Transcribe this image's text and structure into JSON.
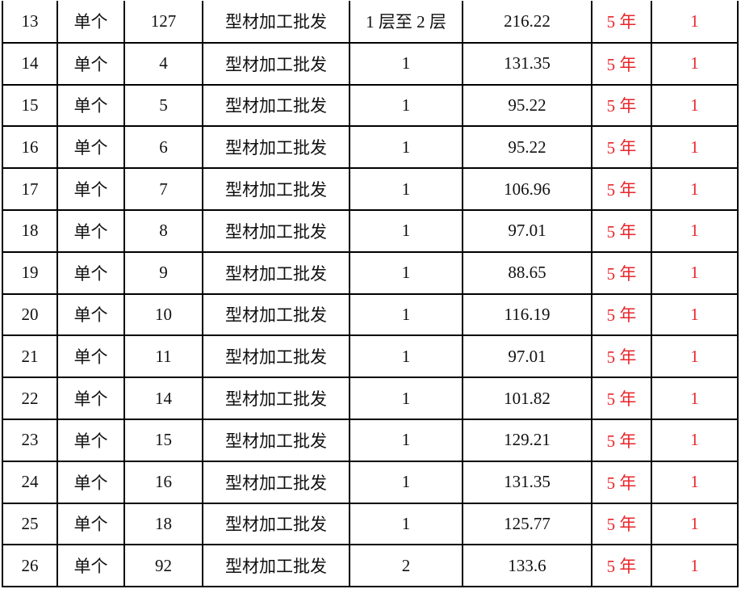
{
  "table": {
    "rows": [
      [
        "13",
        "单个",
        "127",
        "型材加工批发",
        "1 层至 2 层",
        "216.22",
        "5 年",
        "1"
      ],
      [
        "14",
        "单个",
        "4",
        "型材加工批发",
        "1",
        "131.35",
        "5 年",
        "1"
      ],
      [
        "15",
        "单个",
        "5",
        "型材加工批发",
        "1",
        "95.22",
        "5 年",
        "1"
      ],
      [
        "16",
        "单个",
        "6",
        "型材加工批发",
        "1",
        "95.22",
        "5 年",
        "1"
      ],
      [
        "17",
        "单个",
        "7",
        "型材加工批发",
        "1",
        "106.96",
        "5 年",
        "1"
      ],
      [
        "18",
        "单个",
        "8",
        "型材加工批发",
        "1",
        "97.01",
        "5 年",
        "1"
      ],
      [
        "19",
        "单个",
        "9",
        "型材加工批发",
        "1",
        "88.65",
        "5 年",
        "1"
      ],
      [
        "20",
        "单个",
        "10",
        "型材加工批发",
        "1",
        "116.19",
        "5 年",
        "1"
      ],
      [
        "21",
        "单个",
        "11",
        "型材加工批发",
        "1",
        "97.01",
        "5 年",
        "1"
      ],
      [
        "22",
        "单个",
        "14",
        "型材加工批发",
        "1",
        "101.82",
        "5 年",
        "1"
      ],
      [
        "23",
        "单个",
        "15",
        "型材加工批发",
        "1",
        "129.21",
        "5 年",
        "1"
      ],
      [
        "24",
        "单个",
        "16",
        "型材加工批发",
        "1",
        "131.35",
        "5 年",
        "1"
      ],
      [
        "25",
        "单个",
        "18",
        "型材加工批发",
        "1",
        "125.77",
        "5 年",
        "1"
      ],
      [
        "26",
        "单个",
        "92",
        "型材加工批发",
        "2",
        "133.6",
        "5 年",
        "1"
      ]
    ],
    "highlight_color": "#e8262b"
  }
}
